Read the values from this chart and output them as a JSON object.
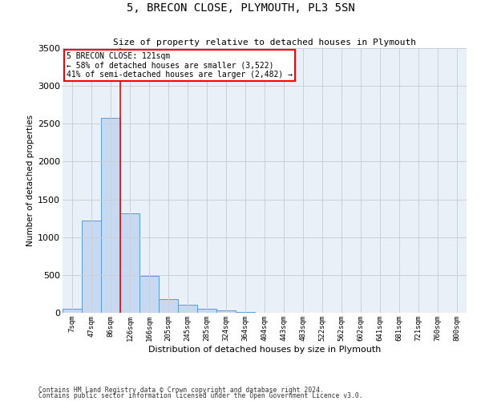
{
  "title": "5, BRECON CLOSE, PLYMOUTH, PL3 5SN",
  "subtitle": "Size of property relative to detached houses in Plymouth",
  "xlabel": "Distribution of detached houses by size in Plymouth",
  "ylabel": "Number of detached properties",
  "categories": [
    "7sqm",
    "47sqm",
    "86sqm",
    "126sqm",
    "166sqm",
    "205sqm",
    "245sqm",
    "285sqm",
    "324sqm",
    "364sqm",
    "404sqm",
    "443sqm",
    "483sqm",
    "522sqm",
    "562sqm",
    "602sqm",
    "641sqm",
    "681sqm",
    "721sqm",
    "760sqm",
    "800sqm"
  ],
  "values": [
    50,
    1220,
    2580,
    1320,
    490,
    185,
    110,
    50,
    30,
    10,
    5,
    2,
    1,
    0,
    0,
    0,
    0,
    0,
    0,
    0,
    0
  ],
  "bar_color": "#c6d9f0",
  "bar_edge_color": "#5b9bd5",
  "ylim": [
    0,
    3500
  ],
  "yticks": [
    0,
    500,
    1000,
    1500,
    2000,
    2500,
    3000,
    3500
  ],
  "red_line_x": 2.5,
  "annotation_text_line1": "5 BRECON CLOSE: 121sqm",
  "annotation_text_line2": "← 58% of detached houses are smaller (3,522)",
  "annotation_text_line3": "41% of semi-detached houses are larger (2,482) →",
  "footnote1": "Contains HM Land Registry data © Crown copyright and database right 2024.",
  "footnote2": "Contains public sector information licensed under the Open Government Licence v3.0.",
  "background_color": "#ffffff",
  "plot_bg_color": "#eaf0f8",
  "grid_color": "#c8d0dc"
}
